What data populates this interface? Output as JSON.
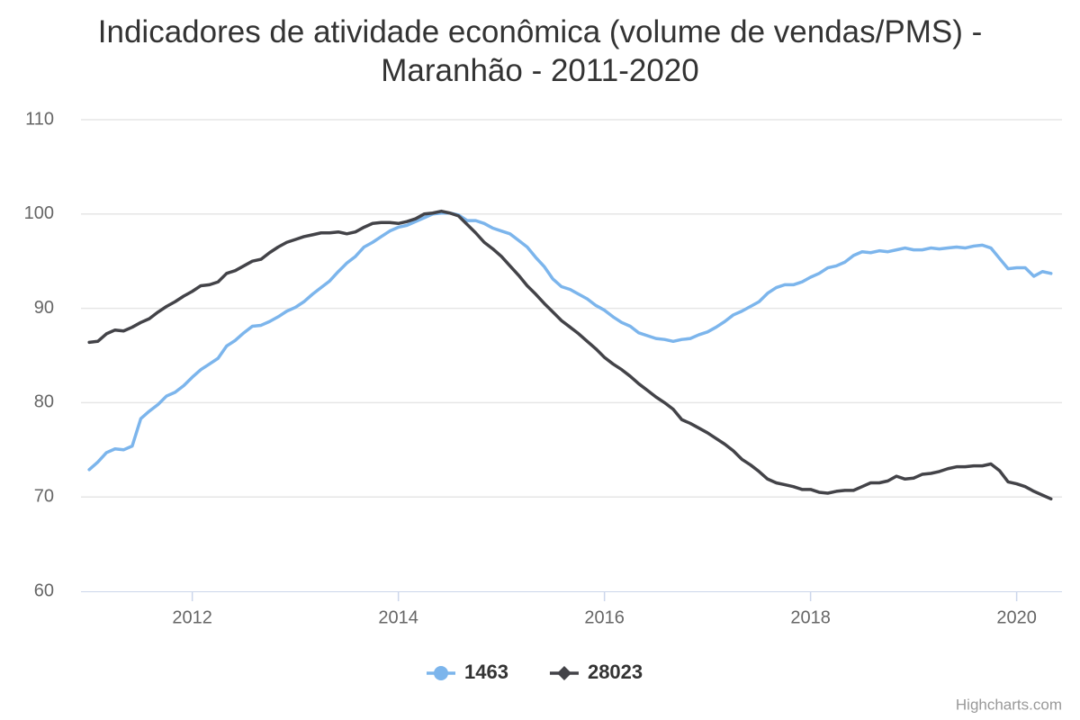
{
  "chart_data": {
    "type": "line",
    "title": "Indicadores de atividade econômica (volume de vendas/PMS) - Maranhão - 2011-2020",
    "x": [
      2011,
      2011.083,
      2011.167,
      2011.25,
      2011.333,
      2011.417,
      2011.5,
      2011.583,
      2011.667,
      2011.75,
      2011.833,
      2011.917,
      2012,
      2012.083,
      2012.167,
      2012.25,
      2012.333,
      2012.417,
      2012.5,
      2012.583,
      2012.667,
      2012.75,
      2012.833,
      2012.917,
      2013,
      2013.083,
      2013.167,
      2013.25,
      2013.333,
      2013.417,
      2013.5,
      2013.583,
      2013.667,
      2013.75,
      2013.833,
      2013.917,
      2014,
      2014.083,
      2014.167,
      2014.25,
      2014.333,
      2014.417,
      2014.5,
      2014.583,
      2014.667,
      2014.75,
      2014.833,
      2014.917,
      2015,
      2015.083,
      2015.167,
      2015.25,
      2015.333,
      2015.417,
      2015.5,
      2015.583,
      2015.667,
      2015.75,
      2015.833,
      2015.917,
      2016,
      2016.083,
      2016.167,
      2016.25,
      2016.333,
      2016.417,
      2016.5,
      2016.583,
      2016.667,
      2016.75,
      2016.833,
      2016.917,
      2017,
      2017.083,
      2017.167,
      2017.25,
      2017.333,
      2017.417,
      2017.5,
      2017.583,
      2017.667,
      2017.75,
      2017.833,
      2017.917,
      2018,
      2018.083,
      2018.167,
      2018.25,
      2018.333,
      2018.417,
      2018.5,
      2018.583,
      2018.667,
      2018.75,
      2018.833,
      2018.917,
      2019,
      2019.083,
      2019.167,
      2019.25,
      2019.333,
      2019.417,
      2019.5,
      2019.583,
      2019.667,
      2019.75,
      2019.833,
      2019.917,
      2020,
      2020.083,
      2020.167,
      2020.25,
      2020.333
    ],
    "series": [
      {
        "name": "1463",
        "color": "#7cb5ec",
        "marker": "circle",
        "values": [
          72.9,
          73.7,
          74.7,
          75.1,
          75.0,
          75.4,
          78.3,
          79.1,
          79.8,
          80.7,
          81.1,
          81.8,
          82.7,
          83.5,
          84.1,
          84.7,
          86.0,
          86.6,
          87.4,
          88.1,
          88.2,
          88.6,
          89.1,
          89.7,
          90.1,
          90.7,
          91.5,
          92.2,
          92.9,
          93.9,
          94.8,
          95.5,
          96.5,
          97.0,
          97.6,
          98.2,
          98.6,
          98.8,
          99.2,
          99.6,
          100.0,
          100.1,
          100.1,
          99.9,
          99.3,
          99.3,
          99.0,
          98.5,
          98.2,
          97.9,
          97.2,
          96.5,
          95.4,
          94.4,
          93.1,
          92.3,
          92.0,
          91.5,
          91.0,
          90.3,
          89.8,
          89.1,
          88.5,
          88.1,
          87.4,
          87.1,
          86.8,
          86.7,
          86.5,
          86.7,
          86.8,
          87.2,
          87.5,
          88.0,
          88.6,
          89.3,
          89.7,
          90.2,
          90.7,
          91.6,
          92.2,
          92.5,
          92.5,
          92.8,
          93.3,
          93.7,
          94.3,
          94.5,
          94.9,
          95.6,
          96.0,
          95.9,
          96.1,
          96.0,
          96.2,
          96.4,
          96.2,
          96.2,
          96.4,
          96.3,
          96.4,
          96.5,
          96.4,
          96.6,
          96.7,
          96.4,
          95.3,
          94.2,
          94.3,
          94.3,
          93.4,
          93.9,
          93.7
        ]
      },
      {
        "name": "28023",
        "color": "#434348",
        "marker": "diamond",
        "values": [
          86.4,
          86.5,
          87.3,
          87.7,
          87.6,
          88.0,
          88.5,
          88.9,
          89.6,
          90.2,
          90.7,
          91.3,
          91.8,
          92.4,
          92.5,
          92.8,
          93.7,
          94.0,
          94.5,
          95.0,
          95.2,
          95.9,
          96.5,
          97.0,
          97.3,
          97.6,
          97.8,
          98.0,
          98.0,
          98.1,
          97.9,
          98.1,
          98.6,
          99.0,
          99.1,
          99.1,
          99.0,
          99.2,
          99.5,
          100.0,
          100.1,
          100.3,
          100.1,
          99.8,
          98.9,
          98.0,
          97.0,
          96.3,
          95.5,
          94.5,
          93.5,
          92.4,
          91.5,
          90.5,
          89.6,
          88.7,
          88.0,
          87.3,
          86.5,
          85.7,
          84.8,
          84.1,
          83.5,
          82.8,
          82.0,
          81.3,
          80.6,
          80.0,
          79.3,
          78.2,
          77.8,
          77.3,
          76.8,
          76.2,
          75.6,
          74.9,
          74.0,
          73.4,
          72.7,
          71.9,
          71.5,
          71.3,
          71.1,
          70.8,
          70.8,
          70.5,
          70.4,
          70.6,
          70.7,
          70.7,
          71.1,
          71.5,
          71.5,
          71.7,
          72.2,
          71.9,
          72.0,
          72.4,
          72.5,
          72.7,
          73.0,
          73.2,
          73.2,
          73.3,
          73.3,
          73.5,
          72.8,
          71.6,
          71.4,
          71.1,
          70.6,
          70.2,
          69.8
        ]
      }
    ],
    "xlim": [
      2010.92,
      2020.44
    ],
    "xticks": [
      2012,
      2014,
      2016,
      2018,
      2020
    ],
    "ylim": [
      60,
      110
    ],
    "yticks": [
      60,
      70,
      80,
      90,
      100,
      110
    ],
    "grid": true,
    "legend": "bottom",
    "credits": "Highcharts.com"
  }
}
